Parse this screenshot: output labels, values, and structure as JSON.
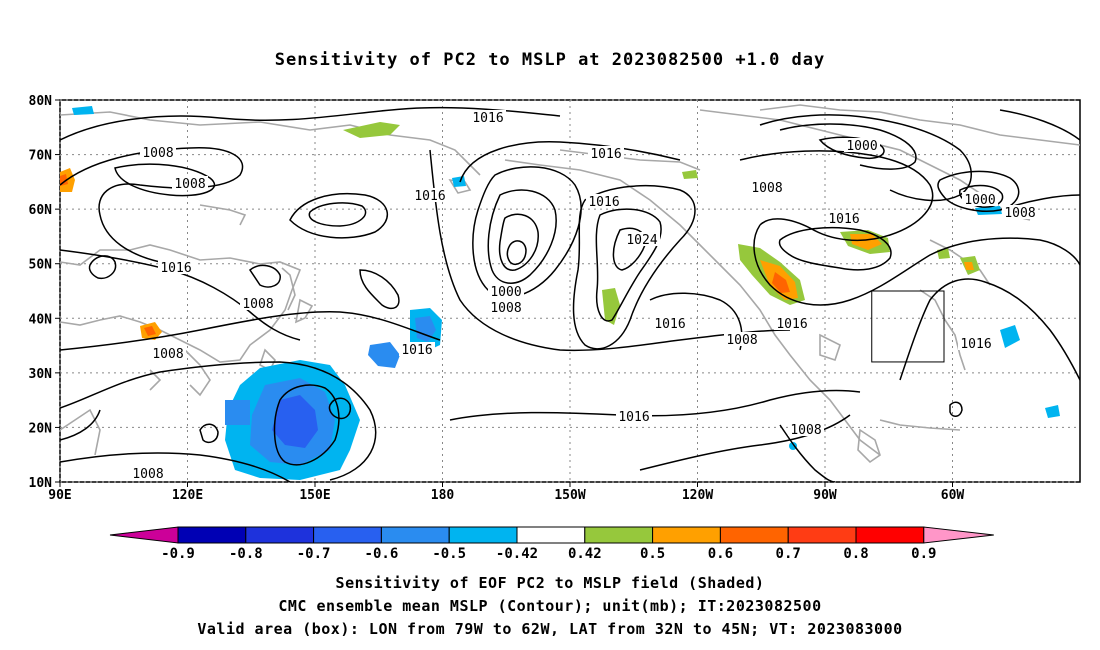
{
  "title": "Sensitivity of PC2 to MSLP at 2023082500 +1.0 day",
  "lat_labels": [
    "80N",
    "70N",
    "60N",
    "50N",
    "40N",
    "30N",
    "20N",
    "10N"
  ],
  "lon_labels": [
    "90E",
    "120E",
    "150E",
    "180",
    "150W",
    "120W",
    "90W",
    "60W"
  ],
  "contour_labels": [
    "1016",
    "1008",
    "1008",
    "1016",
    "1016",
    "1016",
    "1016",
    "1000",
    "1008",
    "1024",
    "1016",
    "1016",
    "1016",
    "1008",
    "1016",
    "1008",
    "1008",
    "1008",
    "1016",
    "1008",
    "1000",
    "1000",
    "1008",
    "1016",
    "1008"
  ],
  "colorbar": {
    "labels": [
      "-0.9",
      "-0.8",
      "-0.7",
      "-0.6",
      "-0.5",
      "-0.42",
      "0.42",
      "0.5",
      "0.6",
      "0.7",
      "0.8",
      "0.9"
    ],
    "colors": [
      "#0000b4",
      "#1e32dc",
      "#2860f0",
      "#2a8cf0",
      "#00b4f0",
      "#ffffff",
      "#96c83c",
      "#ffa000",
      "#ff6400",
      "#ff3c14",
      "#ff0000"
    ],
    "neg_extreme_color": "#cc0099",
    "pos_extreme_color": "#ff96c8"
  },
  "valid_box": {
    "lon_west": -79,
    "lon_east": -62,
    "lat_south": 32,
    "lat_north": 45
  },
  "captions": {
    "line1": "Sensitivity of EOF PC2 to MSLP field (Shaded)",
    "line2": "CMC ensemble mean MSLP (Contour); unit(mb); IT:2023082500",
    "line3": "Valid area (box): LON from 79W to 62W, LAT from 32N to 45N; VT: 2023083000"
  }
}
